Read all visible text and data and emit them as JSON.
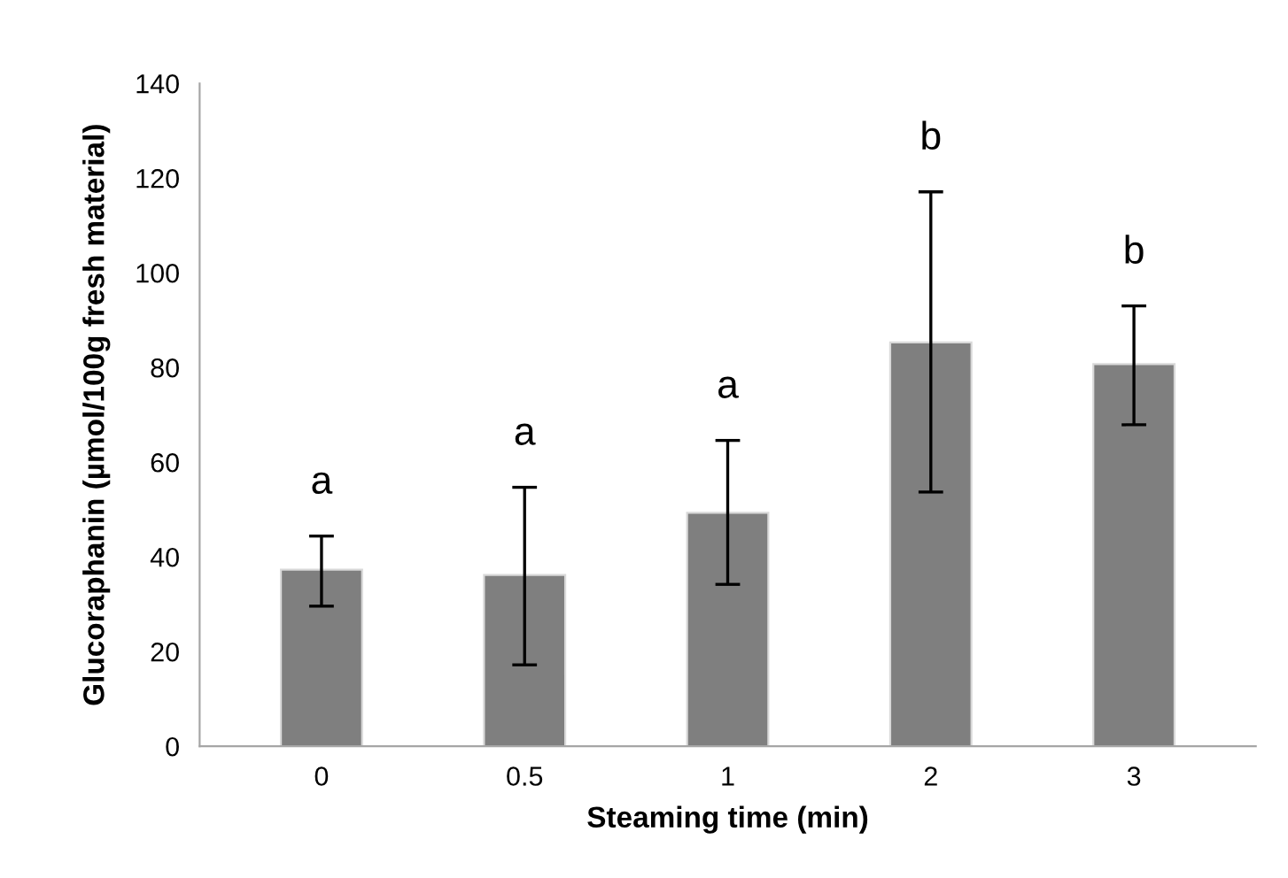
{
  "chart_data": {
    "type": "bar",
    "xlabel": "Steaming time (min)",
    "ylabel": "Glucoraphanin (µmol/100g fresh material)",
    "categories": [
      "0",
      "0.5",
      "1",
      "2",
      "3"
    ],
    "values": [
      37.3,
      36.2,
      49.3,
      85.3,
      80.7
    ],
    "errors": [
      [
        29.6,
        44.4
      ],
      [
        17.2,
        54.7
      ],
      [
        34.2,
        64.6
      ],
      [
        53.7,
        117.1
      ],
      [
        67.9,
        93.0
      ]
    ],
    "color": "#7f7f7f",
    "ylim": [
      0,
      140
    ],
    "yticks": [
      0,
      20,
      40,
      60,
      80,
      100,
      120,
      140
    ],
    "grid": false,
    "annotations": [
      "a",
      "a",
      "a",
      "b",
      "b"
    ]
  }
}
